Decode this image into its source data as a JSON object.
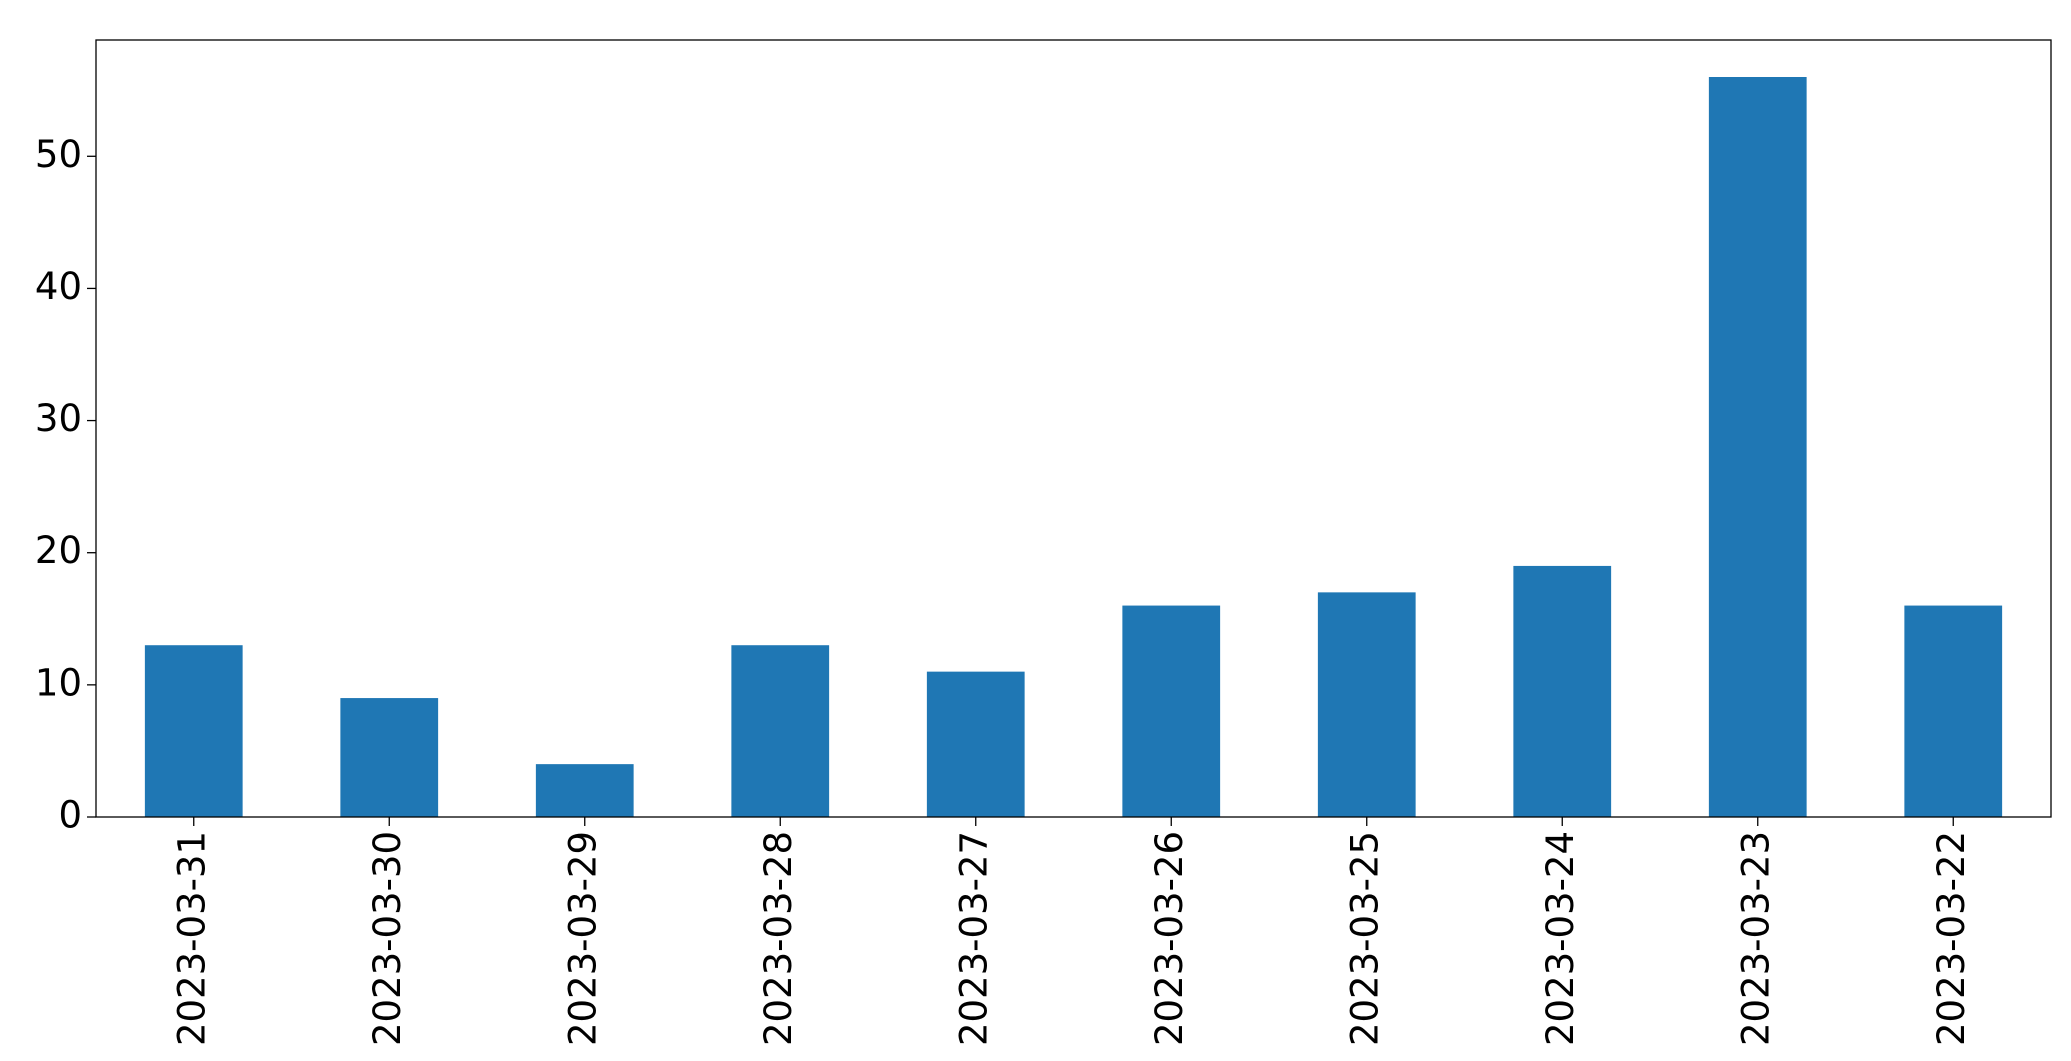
{
  "chart_data": {
    "type": "bar",
    "categories": [
      "2023-03-31",
      "2023-03-30",
      "2023-03-29",
      "2023-03-28",
      "2023-03-27",
      "2023-03-26",
      "2023-03-25",
      "2023-03-24",
      "2023-03-23",
      "2023-03-22"
    ],
    "values": [
      13,
      9,
      4,
      13,
      11,
      16,
      17,
      19,
      56,
      16
    ],
    "color": "#1f77b4",
    "ylim": [
      0,
      58.8
    ],
    "yticks": [
      0,
      10,
      20,
      30,
      40,
      50
    ],
    "grid": false
  }
}
